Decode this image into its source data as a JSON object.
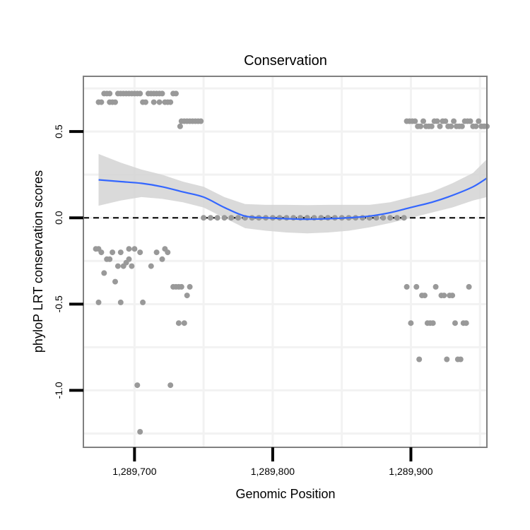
{
  "chart_data": {
    "type": "scatter",
    "title": "Conservation",
    "xlabel": "Genomic Position",
    "ylabel": "phyloP LRT conservation scores",
    "xlim": [
      1289663,
      1289955
    ],
    "ylim": [
      -1.33,
      0.82
    ],
    "xticks": [
      {
        "value": 1289700,
        "label": "1,289,700"
      },
      {
        "value": 1289800,
        "label": "1,289,800"
      },
      {
        "value": 1289900,
        "label": "1,289,900"
      }
    ],
    "yticks": [
      {
        "value": 0.5,
        "label": "0.5"
      },
      {
        "value": 0.0,
        "label": "0.0"
      },
      {
        "value": -0.5,
        "label": "-0.5"
      },
      {
        "value": -1.0,
        "label": "-1.0"
      }
    ],
    "reference_line": {
      "y": 0.0,
      "style": "dashed"
    },
    "colors": {
      "points": "#999999",
      "smooth_line": "#3366ff",
      "confidence_band": "#d3d3d3",
      "panel_border": "#808080",
      "grid": "#f2f2f2",
      "reference_line": "#000000"
    },
    "series": [
      {
        "name": "scores",
        "points": [
          [
            1289674,
            0.67
          ],
          [
            1289676,
            0.67
          ],
          [
            1289678,
            0.72
          ],
          [
            1289680,
            0.72
          ],
          [
            1289682,
            0.72
          ],
          [
            1289684,
            0.67
          ],
          [
            1289686,
            0.67
          ],
          [
            1289688,
            0.72
          ],
          [
            1289690,
            0.72
          ],
          [
            1289692,
            0.72
          ],
          [
            1289694,
            0.72
          ],
          [
            1289696,
            0.72
          ],
          [
            1289698,
            0.72
          ],
          [
            1289700,
            0.72
          ],
          [
            1289702,
            0.72
          ],
          [
            1289704,
            0.72
          ],
          [
            1289706,
            0.67
          ],
          [
            1289708,
            0.67
          ],
          [
            1289710,
            0.72
          ],
          [
            1289712,
            0.72
          ],
          [
            1289714,
            0.72
          ],
          [
            1289716,
            0.72
          ],
          [
            1289718,
            0.72
          ],
          [
            1289720,
            0.72
          ],
          [
            1289722,
            0.67
          ],
          [
            1289724,
            0.67
          ],
          [
            1289726,
            0.67
          ],
          [
            1289728,
            0.72
          ],
          [
            1289730,
            0.72
          ],
          [
            1289682,
            0.67
          ],
          [
            1289714,
            0.67
          ],
          [
            1289718,
            0.67
          ],
          [
            1289733,
            0.53
          ],
          [
            1289734,
            0.56
          ],
          [
            1289736,
            0.56
          ],
          [
            1289738,
            0.56
          ],
          [
            1289740,
            0.56
          ],
          [
            1289742,
            0.56
          ],
          [
            1289744,
            0.56
          ],
          [
            1289746,
            0.56
          ],
          [
            1289748,
            0.56
          ],
          [
            1289672,
            -0.18
          ],
          [
            1289674,
            -0.18
          ],
          [
            1289674,
            -0.49
          ],
          [
            1289676,
            -0.2
          ],
          [
            1289678,
            -0.32
          ],
          [
            1289680,
            -0.24
          ],
          [
            1289682,
            -0.24
          ],
          [
            1289684,
            -0.2
          ],
          [
            1289686,
            -0.37
          ],
          [
            1289688,
            -0.28
          ],
          [
            1289690,
            -0.2
          ],
          [
            1289690,
            -0.49
          ],
          [
            1289692,
            -0.28
          ],
          [
            1289694,
            -0.26
          ],
          [
            1289696,
            -0.18
          ],
          [
            1289696,
            -0.24
          ],
          [
            1289698,
            -0.28
          ],
          [
            1289700,
            -0.18
          ],
          [
            1289702,
            -0.97
          ],
          [
            1289704,
            -1.24
          ],
          [
            1289704,
            -0.2
          ],
          [
            1289706,
            -0.49
          ],
          [
            1289712,
            -0.28
          ],
          [
            1289716,
            -0.2
          ],
          [
            1289720,
            -0.24
          ],
          [
            1289722,
            -0.18
          ],
          [
            1289724,
            -0.2
          ],
          [
            1289726,
            -0.97
          ],
          [
            1289728,
            -0.4
          ],
          [
            1289730,
            -0.4
          ],
          [
            1289732,
            -0.4
          ],
          [
            1289732,
            -0.61
          ],
          [
            1289734,
            -0.4
          ],
          [
            1289736,
            -0.61
          ],
          [
            1289738,
            -0.45
          ],
          [
            1289740,
            -0.4
          ],
          [
            1289750,
            0.0
          ],
          [
            1289755,
            0.0
          ],
          [
            1289760,
            0.0
          ],
          [
            1289765,
            0.0
          ],
          [
            1289770,
            0.0
          ],
          [
            1289775,
            0.0
          ],
          [
            1289780,
            0.0
          ],
          [
            1289785,
            0.0
          ],
          [
            1289790,
            0.0
          ],
          [
            1289795,
            0.0
          ],
          [
            1289800,
            0.0
          ],
          [
            1289805,
            0.0
          ],
          [
            1289810,
            0.0
          ],
          [
            1289815,
            0.0
          ],
          [
            1289820,
            0.0
          ],
          [
            1289825,
            0.0
          ],
          [
            1289830,
            0.0
          ],
          [
            1289835,
            0.0
          ],
          [
            1289840,
            0.0
          ],
          [
            1289845,
            0.0
          ],
          [
            1289850,
            0.0
          ],
          [
            1289855,
            0.0
          ],
          [
            1289860,
            0.0
          ],
          [
            1289865,
            0.0
          ],
          [
            1289870,
            0.0
          ],
          [
            1289875,
            0.0
          ],
          [
            1289880,
            0.0
          ],
          [
            1289885,
            0.0
          ],
          [
            1289890,
            0.0
          ],
          [
            1289895,
            0.0
          ],
          [
            1289897,
            0.56
          ],
          [
            1289899,
            0.56
          ],
          [
            1289901,
            0.56
          ],
          [
            1289903,
            0.56
          ],
          [
            1289905,
            0.53
          ],
          [
            1289907,
            0.53
          ],
          [
            1289909,
            0.56
          ],
          [
            1289911,
            0.53
          ],
          [
            1289913,
            0.53
          ],
          [
            1289915,
            0.53
          ],
          [
            1289917,
            0.56
          ],
          [
            1289919,
            0.56
          ],
          [
            1289921,
            0.53
          ],
          [
            1289923,
            0.56
          ],
          [
            1289925,
            0.56
          ],
          [
            1289927,
            0.53
          ],
          [
            1289929,
            0.53
          ],
          [
            1289931,
            0.56
          ],
          [
            1289933,
            0.53
          ],
          [
            1289935,
            0.53
          ],
          [
            1289937,
            0.53
          ],
          [
            1289939,
            0.56
          ],
          [
            1289941,
            0.56
          ],
          [
            1289943,
            0.56
          ],
          [
            1289945,
            0.53
          ],
          [
            1289947,
            0.53
          ],
          [
            1289949,
            0.56
          ],
          [
            1289951,
            0.53
          ],
          [
            1289953,
            0.53
          ],
          [
            1289955,
            0.53
          ],
          [
            1289897,
            -0.4
          ],
          [
            1289900,
            -0.61
          ],
          [
            1289904,
            -0.4
          ],
          [
            1289906,
            -0.82
          ],
          [
            1289908,
            -0.45
          ],
          [
            1289910,
            -0.45
          ],
          [
            1289912,
            -0.61
          ],
          [
            1289914,
            -0.61
          ],
          [
            1289916,
            -0.61
          ],
          [
            1289918,
            -0.4
          ],
          [
            1289922,
            -0.45
          ],
          [
            1289924,
            -0.45
          ],
          [
            1289926,
            -0.82
          ],
          [
            1289928,
            -0.45
          ],
          [
            1289930,
            -0.45
          ],
          [
            1289932,
            -0.61
          ],
          [
            1289934,
            -0.82
          ],
          [
            1289936,
            -0.82
          ],
          [
            1289938,
            -0.61
          ],
          [
            1289940,
            -0.61
          ],
          [
            1289942,
            -0.4
          ]
        ]
      }
    ],
    "smooth": {
      "x": [
        1289674,
        1289690,
        1289705,
        1289720,
        1289735,
        1289750,
        1289765,
        1289780,
        1289795,
        1289810,
        1289825,
        1289840,
        1289855,
        1289870,
        1289885,
        1289900,
        1289915,
        1289930,
        1289945,
        1289955
      ],
      "y": [
        0.22,
        0.21,
        0.2,
        0.18,
        0.15,
        0.12,
        0.06,
        0.01,
        0.0,
        -0.005,
        -0.008,
        -0.005,
        0.0,
        0.01,
        0.03,
        0.06,
        0.09,
        0.13,
        0.18,
        0.23
      ],
      "lower": [
        0.07,
        0.1,
        0.12,
        0.11,
        0.09,
        0.06,
        0.0,
        -0.06,
        -0.075,
        -0.085,
        -0.09,
        -0.085,
        -0.075,
        -0.055,
        -0.03,
        0.0,
        0.03,
        0.06,
        0.1,
        0.12
      ],
      "upper": [
        0.37,
        0.32,
        0.28,
        0.25,
        0.21,
        0.18,
        0.12,
        0.08,
        0.075,
        0.075,
        0.074,
        0.075,
        0.075,
        0.075,
        0.09,
        0.12,
        0.15,
        0.2,
        0.26,
        0.34
      ]
    }
  }
}
